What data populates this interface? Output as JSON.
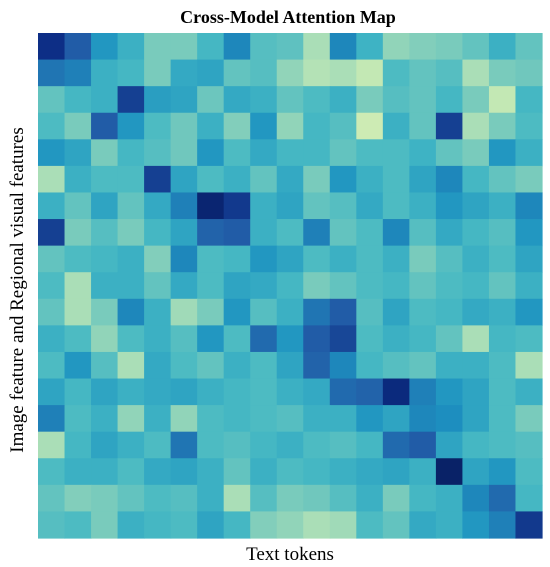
{
  "chart_data": {
    "type": "heatmap",
    "title": "Cross-Model Attention Map",
    "xlabel": "Text tokens",
    "ylabel": "Image feature and Regional visual features",
    "rows": 19,
    "cols": 19,
    "colormap": "YlGnBu",
    "colormap_stops": [
      "#edf8b1",
      "#c7e9b4",
      "#7fcdbb",
      "#41b6c4",
      "#1d91c0",
      "#225ea8",
      "#0c2c84",
      "#081d58"
    ],
    "value_range": [
      0,
      1
    ],
    "colorbar": false,
    "grid": false,
    "values": [
      [
        0.85,
        0.72,
        0.55,
        0.45,
        0.3,
        0.3,
        0.42,
        0.6,
        0.38,
        0.36,
        0.2,
        0.6,
        0.44,
        0.25,
        0.28,
        0.3,
        0.35,
        0.45,
        0.35
      ],
      [
        0.65,
        0.62,
        0.45,
        0.42,
        0.3,
        0.48,
        0.5,
        0.35,
        0.38,
        0.25,
        0.18,
        0.2,
        0.15,
        0.4,
        0.35,
        0.38,
        0.2,
        0.3,
        0.32
      ],
      [
        0.35,
        0.42,
        0.45,
        0.8,
        0.52,
        0.5,
        0.33,
        0.48,
        0.45,
        0.35,
        0.4,
        0.45,
        0.3,
        0.38,
        0.35,
        0.42,
        0.3,
        0.15,
        0.42
      ],
      [
        0.4,
        0.3,
        0.72,
        0.55,
        0.4,
        0.32,
        0.45,
        0.28,
        0.55,
        0.25,
        0.42,
        0.38,
        0.12,
        0.45,
        0.35,
        0.8,
        0.2,
        0.3,
        0.4
      ],
      [
        0.55,
        0.5,
        0.3,
        0.42,
        0.38,
        0.32,
        0.55,
        0.4,
        0.48,
        0.42,
        0.42,
        0.35,
        0.4,
        0.4,
        0.44,
        0.35,
        0.3,
        0.55,
        0.45
      ],
      [
        0.2,
        0.45,
        0.4,
        0.4,
        0.8,
        0.5,
        0.4,
        0.45,
        0.35,
        0.48,
        0.3,
        0.55,
        0.45,
        0.4,
        0.5,
        0.6,
        0.42,
        0.35,
        0.3
      ],
      [
        0.45,
        0.35,
        0.5,
        0.35,
        0.48,
        0.62,
        0.92,
        0.82,
        0.45,
        0.5,
        0.35,
        0.38,
        0.48,
        0.4,
        0.45,
        0.55,
        0.5,
        0.45,
        0.6
      ],
      [
        0.8,
        0.3,
        0.38,
        0.3,
        0.42,
        0.5,
        0.7,
        0.72,
        0.45,
        0.4,
        0.62,
        0.35,
        0.4,
        0.6,
        0.38,
        0.48,
        0.42,
        0.38,
        0.55
      ],
      [
        0.35,
        0.4,
        0.42,
        0.45,
        0.28,
        0.6,
        0.4,
        0.42,
        0.55,
        0.5,
        0.4,
        0.45,
        0.4,
        0.45,
        0.3,
        0.38,
        0.45,
        0.4,
        0.5
      ],
      [
        0.4,
        0.2,
        0.45,
        0.45,
        0.35,
        0.48,
        0.4,
        0.5,
        0.48,
        0.42,
        0.3,
        0.35,
        0.4,
        0.42,
        0.35,
        0.4,
        0.42,
        0.35,
        0.45
      ],
      [
        0.35,
        0.2,
        0.3,
        0.6,
        0.45,
        0.22,
        0.3,
        0.55,
        0.38,
        0.45,
        0.65,
        0.72,
        0.38,
        0.5,
        0.4,
        0.42,
        0.48,
        0.45,
        0.55
      ],
      [
        0.45,
        0.4,
        0.25,
        0.4,
        0.45,
        0.38,
        0.55,
        0.4,
        0.68,
        0.55,
        0.72,
        0.78,
        0.4,
        0.45,
        0.42,
        0.35,
        0.2,
        0.42,
        0.4
      ],
      [
        0.4,
        0.55,
        0.38,
        0.2,
        0.48,
        0.4,
        0.35,
        0.45,
        0.4,
        0.5,
        0.7,
        0.6,
        0.42,
        0.38,
        0.35,
        0.45,
        0.45,
        0.4,
        0.2
      ],
      [
        0.5,
        0.42,
        0.5,
        0.45,
        0.48,
        0.5,
        0.45,
        0.42,
        0.4,
        0.45,
        0.48,
        0.68,
        0.7,
        0.88,
        0.62,
        0.55,
        0.5,
        0.4,
        0.45
      ],
      [
        0.62,
        0.4,
        0.45,
        0.25,
        0.45,
        0.25,
        0.4,
        0.42,
        0.4,
        0.38,
        0.45,
        0.45,
        0.55,
        0.5,
        0.6,
        0.58,
        0.5,
        0.4,
        0.3
      ],
      [
        0.2,
        0.42,
        0.5,
        0.45,
        0.4,
        0.65,
        0.4,
        0.38,
        0.42,
        0.45,
        0.4,
        0.38,
        0.42,
        0.68,
        0.72,
        0.5,
        0.42,
        0.4,
        0.38
      ],
      [
        0.4,
        0.45,
        0.45,
        0.4,
        0.48,
        0.5,
        0.45,
        0.35,
        0.45,
        0.4,
        0.42,
        0.45,
        0.48,
        0.5,
        0.45,
        0.95,
        0.5,
        0.55,
        0.4
      ],
      [
        0.35,
        0.28,
        0.3,
        0.35,
        0.4,
        0.38,
        0.45,
        0.2,
        0.38,
        0.3,
        0.32,
        0.38,
        0.45,
        0.3,
        0.42,
        0.45,
        0.6,
        0.68,
        0.42
      ],
      [
        0.38,
        0.4,
        0.3,
        0.45,
        0.42,
        0.4,
        0.5,
        0.42,
        0.28,
        0.25,
        0.2,
        0.22,
        0.4,
        0.35,
        0.48,
        0.45,
        0.55,
        0.62,
        0.82
      ]
    ]
  }
}
